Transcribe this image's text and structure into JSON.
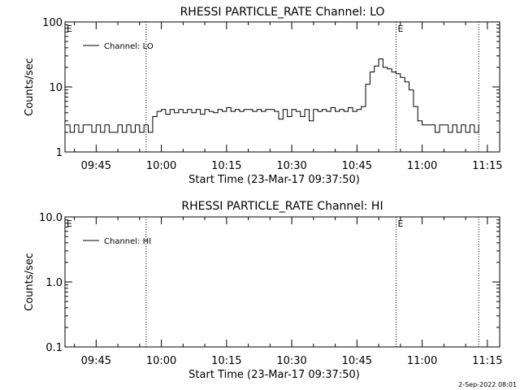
{
  "footer": {
    "timestamp": "2-Sep-2022 08:01"
  },
  "chart_data": [
    {
      "type": "line",
      "title": "RHESSI PARTICLE_RATE Channel: LO",
      "xlabel": "Start Time (23-Mar-17 09:37:50)",
      "ylabel": "Counts/sec",
      "yscale": "log",
      "ylim": [
        1,
        100
      ],
      "xlim": [
        "09:37:50",
        "11:17:50"
      ],
      "x_ticks": [
        "09:45",
        "10:00",
        "10:15",
        "10:30",
        "10:45",
        "11:00",
        "11:15"
      ],
      "y_ticks": [
        "1",
        "10",
        "100"
      ],
      "legend": {
        "position": "top-left",
        "entries": [
          "Channel: LO"
        ]
      },
      "event_markers": [
        {
          "time": "09:56:30",
          "label": ""
        },
        {
          "time": "10:54:00",
          "label": "E"
        },
        {
          "time": "11:13:00",
          "label": ""
        }
      ],
      "corner_label": "E",
      "series": [
        {
          "name": "Channel: LO",
          "x": [
            "09:38:00",
            "09:39:00",
            "09:40:00",
            "09:41:00",
            "09:42:00",
            "09:43:00",
            "09:44:00",
            "09:45:00",
            "09:46:00",
            "09:47:00",
            "09:48:00",
            "09:49:00",
            "09:50:00",
            "09:51:00",
            "09:52:00",
            "09:53:00",
            "09:54:00",
            "09:55:00",
            "09:56:00",
            "09:57:00",
            "09:58:00",
            "09:59:00",
            "10:00:00",
            "10:01:00",
            "10:02:00",
            "10:03:00",
            "10:04:00",
            "10:05:00",
            "10:06:00",
            "10:07:00",
            "10:08:00",
            "10:09:00",
            "10:10:00",
            "10:11:00",
            "10:12:00",
            "10:13:00",
            "10:14:00",
            "10:15:00",
            "10:16:00",
            "10:17:00",
            "10:18:00",
            "10:19:00",
            "10:20:00",
            "10:21:00",
            "10:22:00",
            "10:23:00",
            "10:24:00",
            "10:25:00",
            "10:26:00",
            "10:27:00",
            "10:28:00",
            "10:29:00",
            "10:30:00",
            "10:31:00",
            "10:32:00",
            "10:33:00",
            "10:34:00",
            "10:35:00",
            "10:36:00",
            "10:37:00",
            "10:38:00",
            "10:39:00",
            "10:40:00",
            "10:41:00",
            "10:42:00",
            "10:43:00",
            "10:44:00",
            "10:45:00",
            "10:46:00",
            "10:47:00",
            "10:48:00",
            "10:49:00",
            "10:50:00",
            "10:51:00",
            "10:52:00",
            "10:53:00",
            "10:54:00",
            "10:55:00",
            "10:56:00",
            "10:57:00",
            "10:58:00",
            "10:59:00",
            "11:00:00",
            "11:01:00",
            "11:02:00",
            "11:03:00",
            "11:04:00",
            "11:05:00",
            "11:06:00",
            "11:07:00",
            "11:08:00",
            "11:09:00",
            "11:10:00",
            "11:11:00",
            "11:12:00",
            "11:13:00"
          ],
          "values": [
            2.6,
            2.0,
            2.6,
            2.0,
            2.6,
            2.6,
            2.0,
            2.6,
            2.0,
            2.6,
            2.0,
            2.0,
            2.6,
            2.0,
            2.6,
            2.0,
            2.6,
            2.0,
            2.6,
            2.0,
            3.5,
            4.2,
            4.5,
            3.8,
            4.5,
            4.0,
            4.5,
            4.0,
            4.5,
            4.0,
            4.5,
            3.8,
            4.5,
            4.2,
            4.0,
            4.5,
            4.2,
            4.8,
            4.2,
            4.5,
            4.2,
            4.5,
            4.5,
            4.2,
            4.5,
            4.2,
            4.5,
            4.5,
            4.2,
            3.2,
            4.5,
            3.5,
            4.5,
            4.2,
            3.5,
            4.5,
            3.0,
            4.5,
            4.2,
            4.5,
            4.2,
            4.8,
            4.2,
            4.5,
            4.2,
            4.8,
            4.2,
            4.5,
            5.0,
            11.0,
            17.0,
            21.0,
            27.0,
            20.0,
            19.0,
            17.0,
            16.0,
            14.0,
            12.0,
            9.0,
            5.0,
            3.0,
            2.6,
            2.6,
            2.6,
            2.0,
            2.6,
            2.6,
            2.0,
            2.6,
            2.0,
            2.6,
            2.0,
            2.6,
            2.0,
            2.6
          ]
        }
      ]
    },
    {
      "type": "line",
      "title": "RHESSI PARTICLE_RATE Channel: HI",
      "xlabel": "Start Time (23-Mar-17 09:37:50)",
      "ylabel": "Counts/sec",
      "yscale": "log",
      "ylim": [
        0.1,
        10
      ],
      "xlim": [
        "09:37:50",
        "11:17:50"
      ],
      "x_ticks": [
        "09:45",
        "10:00",
        "10:15",
        "10:30",
        "10:45",
        "11:00",
        "11:15"
      ],
      "y_ticks": [
        "0.1",
        "1.0",
        "10.0"
      ],
      "legend": {
        "position": "top-left",
        "entries": [
          "Channel: HI"
        ]
      },
      "event_markers": [
        {
          "time": "09:56:30",
          "label": ""
        },
        {
          "time": "10:54:00",
          "label": "E"
        },
        {
          "time": "11:13:00",
          "label": ""
        }
      ],
      "corner_label": "E",
      "series": [
        {
          "name": "Channel: HI",
          "x": [],
          "values": []
        }
      ]
    }
  ]
}
